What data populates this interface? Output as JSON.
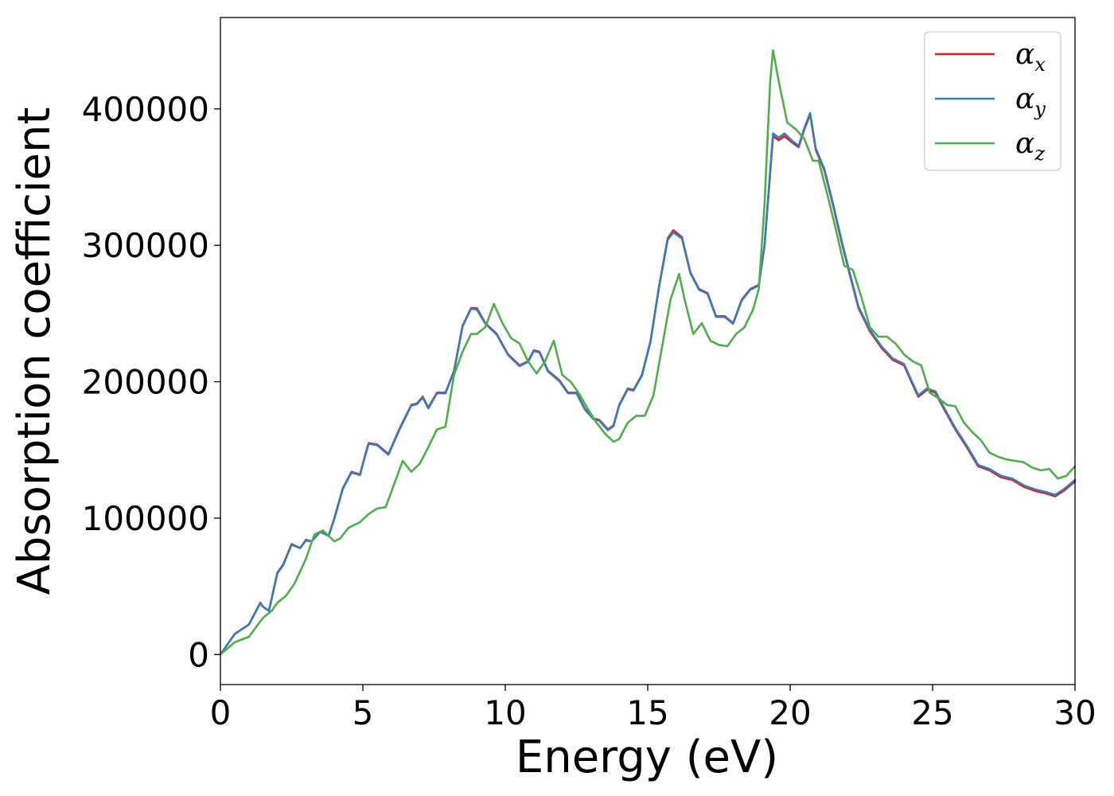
{
  "chart_data": {
    "type": "line",
    "xlabel": "Energy (eV)",
    "ylabel": "Absorption coefficient",
    "xlim": [
      0,
      30
    ],
    "ylim": [
      -22000,
      467000
    ],
    "xticks": [
      0,
      5,
      10,
      15,
      20,
      25,
      30
    ],
    "yticks": [
      0,
      100000,
      200000,
      300000,
      400000
    ],
    "xtick_labels": [
      "0",
      "5",
      "10",
      "15",
      "20",
      "25",
      "30"
    ],
    "ytick_labels": [
      "0",
      "100000",
      "200000",
      "300000",
      "400000"
    ],
    "grid": false,
    "legend_position": "top-right",
    "series": [
      {
        "name": "α",
        "subscript": "x",
        "color": "#e41a1c",
        "x": [
          0,
          0.5,
          1.0,
          1.4,
          1.5,
          1.7,
          2.0,
          2.2,
          2.5,
          2.8,
          3.0,
          3.2,
          3.5,
          3.8,
          4.0,
          4.3,
          4.6,
          4.9,
          5.0,
          5.2,
          5.5,
          5.9,
          6.3,
          6.7,
          6.9,
          7.1,
          7.3,
          7.6,
          7.9,
          8.2,
          8.5,
          8.8,
          9.0,
          9.3,
          9.7,
          10.1,
          10.5,
          10.8,
          11.0,
          11.2,
          11.5,
          11.9,
          12.2,
          12.5,
          12.8,
          13.1,
          13.3,
          13.6,
          13.8,
          14.0,
          14.3,
          14.5,
          14.8,
          15.1,
          15.4,
          15.7,
          15.9,
          16.2,
          16.5,
          16.8,
          17.1,
          17.4,
          17.7,
          18.0,
          18.3,
          18.6,
          18.9,
          19.1,
          19.4,
          19.6,
          19.8,
          20.1,
          20.3,
          20.5,
          20.7,
          20.9,
          21.2,
          21.5,
          21.8,
          22.1,
          22.4,
          22.8,
          23.2,
          23.6,
          24.0,
          24.3,
          24.5,
          24.8,
          25.1,
          25.4,
          25.8,
          26.2,
          26.6,
          27.0,
          27.4,
          27.8,
          28.2,
          28.6,
          29.0,
          29.3,
          29.6,
          30.0
        ],
        "y": [
          0,
          15000,
          22000,
          38000,
          35000,
          32000,
          60000,
          66000,
          81000,
          78000,
          84000,
          83000,
          90000,
          87000,
          100000,
          122000,
          134000,
          132000,
          140000,
          155000,
          154000,
          147000,
          166000,
          183000,
          184000,
          189000,
          181000,
          192000,
          192000,
          208000,
          241000,
          254000,
          254000,
          243000,
          235000,
          220000,
          212000,
          215000,
          223000,
          222000,
          208000,
          201000,
          192000,
          192000,
          180000,
          173000,
          172000,
          165000,
          168000,
          183000,
          195000,
          194000,
          205000,
          230000,
          270000,
          305000,
          311000,
          306000,
          280000,
          268000,
          265000,
          248000,
          248000,
          243000,
          260000,
          268000,
          271000,
          300000,
          380000,
          377000,
          380000,
          375000,
          372000,
          385000,
          396000,
          370000,
          355000,
          330000,
          303000,
          278000,
          254000,
          237000,
          225000,
          216000,
          212000,
          198000,
          189000,
          194000,
          192000,
          180000,
          165000,
          152000,
          138000,
          135000,
          130000,
          128000,
          123000,
          120000,
          118000,
          116000,
          120000,
          127000
        ]
      },
      {
        "name": "α",
        "subscript": "y",
        "color": "#377eb8",
        "x": [
          0,
          0.5,
          1.0,
          1.4,
          1.5,
          1.7,
          2.0,
          2.2,
          2.5,
          2.8,
          3.0,
          3.2,
          3.5,
          3.8,
          4.0,
          4.3,
          4.6,
          4.9,
          5.0,
          5.2,
          5.5,
          5.9,
          6.3,
          6.7,
          6.9,
          7.1,
          7.3,
          7.6,
          7.9,
          8.2,
          8.5,
          8.8,
          9.0,
          9.3,
          9.7,
          10.1,
          10.5,
          10.8,
          11.0,
          11.2,
          11.5,
          11.9,
          12.2,
          12.5,
          12.8,
          13.1,
          13.3,
          13.6,
          13.8,
          14.0,
          14.3,
          14.5,
          14.8,
          15.1,
          15.4,
          15.7,
          15.9,
          16.2,
          16.5,
          16.8,
          17.1,
          17.4,
          17.7,
          18.0,
          18.3,
          18.6,
          18.9,
          19.1,
          19.4,
          19.6,
          19.8,
          20.1,
          20.3,
          20.5,
          20.7,
          20.9,
          21.2,
          21.5,
          21.8,
          22.1,
          22.4,
          22.8,
          23.2,
          23.6,
          24.0,
          24.3,
          24.5,
          24.8,
          25.1,
          25.4,
          25.8,
          26.2,
          26.6,
          27.0,
          27.4,
          27.8,
          28.2,
          28.6,
          29.0,
          29.3,
          29.6,
          30.0
        ],
        "y": [
          0,
          15000,
          22000,
          37500,
          35000,
          32000,
          59500,
          65500,
          80500,
          78000,
          83500,
          83000,
          90000,
          87000,
          99500,
          121500,
          133500,
          131500,
          139500,
          154500,
          153500,
          146500,
          165500,
          182500,
          183500,
          188500,
          180500,
          191500,
          191500,
          207500,
          240500,
          253500,
          253000,
          242500,
          234500,
          219500,
          211500,
          214500,
          222500,
          221500,
          207500,
          200500,
          191500,
          191500,
          179500,
          172500,
          171500,
          164500,
          167500,
          182500,
          194500,
          193500,
          204500,
          229500,
          269500,
          304000,
          309500,
          305000,
          279500,
          267500,
          264500,
          247500,
          247500,
          242500,
          259500,
          267500,
          270500,
          299500,
          382000,
          379000,
          382000,
          376000,
          373000,
          386000,
          397000,
          371000,
          356000,
          331000,
          304000,
          279000,
          255000,
          238000,
          226000,
          217000,
          213000,
          199000,
          190000,
          195000,
          193000,
          181000,
          166000,
          153000,
          139000,
          136000,
          131000,
          129000,
          124000,
          121000,
          119000,
          117000,
          121000,
          128000
        ]
      },
      {
        "name": "α",
        "subscript": "z",
        "color": "#4daf4a",
        "x": [
          0,
          0.5,
          1.0,
          1.5,
          1.8,
          2.0,
          2.3,
          2.6,
          3.0,
          3.3,
          3.6,
          3.8,
          4.0,
          4.2,
          4.5,
          4.9,
          5.2,
          5.5,
          5.8,
          6.1,
          6.4,
          6.7,
          7.0,
          7.3,
          7.6,
          7.9,
          8.2,
          8.5,
          8.8,
          9.0,
          9.3,
          9.6,
          9.9,
          10.2,
          10.5,
          10.8,
          11.1,
          11.4,
          11.7,
          12.0,
          12.3,
          12.6,
          12.9,
          13.2,
          13.5,
          13.8,
          14.0,
          14.3,
          14.6,
          14.9,
          15.2,
          15.5,
          15.8,
          16.1,
          16.3,
          16.6,
          16.9,
          17.2,
          17.5,
          17.8,
          18.1,
          18.4,
          18.7,
          18.9,
          19.1,
          19.3,
          19.4,
          19.6,
          19.9,
          20.2,
          20.5,
          20.8,
          21.0,
          21.3,
          21.6,
          21.9,
          22.2,
          22.5,
          22.8,
          23.1,
          23.4,
          23.7,
          24.0,
          24.3,
          24.6,
          24.9,
          25.2,
          25.5,
          25.8,
          26.1,
          26.4,
          26.7,
          27.0,
          27.3,
          27.6,
          27.9,
          28.2,
          28.5,
          28.8,
          29.1,
          29.4,
          29.7,
          30.0
        ],
        "y": [
          0,
          9000,
          13000,
          27000,
          32000,
          38000,
          43000,
          52000,
          70000,
          88000,
          91000,
          87000,
          83000,
          85000,
          93000,
          97000,
          103000,
          107000,
          108000,
          125000,
          142000,
          134000,
          140000,
          152000,
          165000,
          167000,
          205000,
          222000,
          235000,
          235000,
          240000,
          257000,
          243000,
          232000,
          228000,
          215000,
          206000,
          215000,
          230000,
          205000,
          200000,
          191000,
          180000,
          170000,
          162000,
          156000,
          158000,
          170000,
          175000,
          175000,
          190000,
          225000,
          260000,
          279000,
          260000,
          235000,
          243000,
          230000,
          227000,
          226000,
          235000,
          240000,
          253000,
          268000,
          330000,
          420000,
          443000,
          420000,
          390000,
          385000,
          378000,
          362000,
          362000,
          338000,
          312000,
          285000,
          282000,
          262000,
          240000,
          233000,
          233000,
          228000,
          220000,
          215000,
          212000,
          192000,
          188000,
          183000,
          182000,
          170000,
          163000,
          157000,
          148000,
          145000,
          143000,
          142000,
          141000,
          137000,
          135000,
          136000,
          129000,
          131000,
          138000
        ]
      }
    ]
  }
}
